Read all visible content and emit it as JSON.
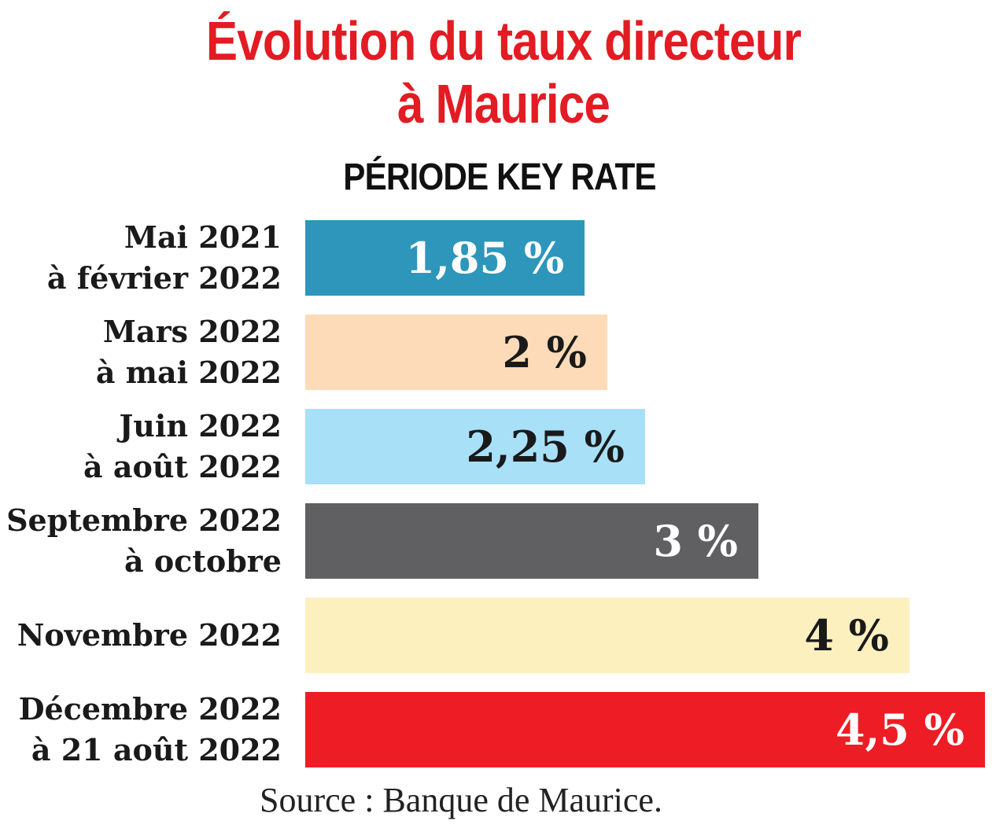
{
  "chart_data": {
    "type": "bar",
    "orientation": "horizontal",
    "title": "Évolution du taux directeur à Maurice",
    "title_lines": [
      "Évolution du taux directeur",
      "à Maurice"
    ],
    "column_header": "PÉRIODE KEY RATE",
    "categories": [
      [
        "Mai 2021",
        "à février 2022"
      ],
      [
        "Mars 2022",
        "à mai 2022"
      ],
      [
        "Juin 2022",
        "à août 2022"
      ],
      [
        "Septembre 2022",
        "à octobre"
      ],
      [
        "Novembre 2022"
      ],
      [
        "Décembre 2022",
        "à 21 août 2022"
      ]
    ],
    "values": [
      1.85,
      2,
      2.25,
      3,
      4,
      4.5
    ],
    "value_labels": [
      "1,85 %",
      "2 %",
      "2,25 %",
      "3 %",
      "4 %",
      "4,5 %"
    ],
    "colors": [
      "#2e96bb",
      "#fddbb8",
      "#a8e0f8",
      "#606062",
      "#fdf0bf",
      "#ee1c25"
    ],
    "label_colors": [
      "#ffffff",
      "#1a1a1a",
      "#1a1a1a",
      "#ffffff",
      "#1a1a1a",
      "#ffffff"
    ],
    "xlim": [
      0,
      4.5
    ],
    "grid": false,
    "source": "Source : Banque de Maurice."
  }
}
